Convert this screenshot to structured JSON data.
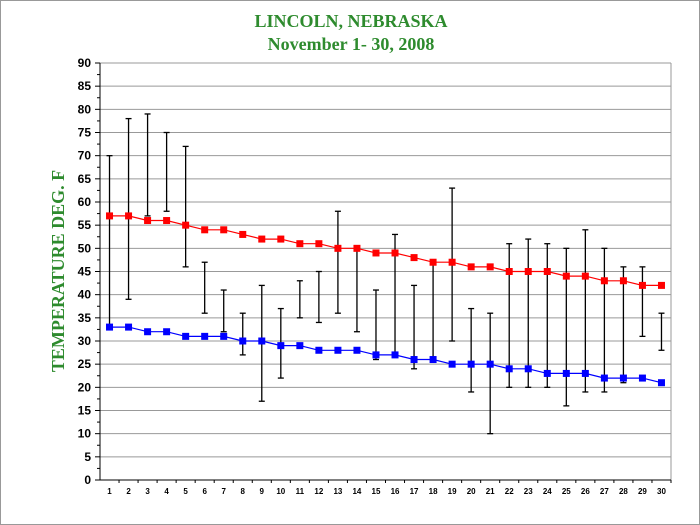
{
  "chart_data": {
    "type": "line",
    "title": "LINCOLN, NEBRASKA",
    "subtitle": "November 1- 30, 2008",
    "xlabel": "",
    "ylabel": "TEMPERATURE DEG. F",
    "ylim": [
      0,
      90
    ],
    "yticks": [
      0,
      5,
      10,
      15,
      20,
      25,
      30,
      35,
      40,
      45,
      50,
      55,
      60,
      65,
      70,
      75,
      80,
      85,
      90
    ],
    "grid": true,
    "categories": [
      "1",
      "2",
      "3",
      "4",
      "5",
      "6",
      "7",
      "8",
      "9",
      "10",
      "11",
      "12",
      "13",
      "14",
      "15",
      "16",
      "17",
      "18",
      "19",
      "20",
      "21",
      "22",
      "23",
      "24",
      "25",
      "26",
      "27",
      "28",
      "29",
      "30"
    ],
    "series": [
      {
        "color": "#ff0000",
        "values": [
          57,
          57,
          56,
          56,
          55,
          54,
          54,
          53,
          52,
          52,
          51,
          51,
          50,
          50,
          49,
          49,
          48,
          47,
          47,
          46,
          46,
          45,
          45,
          45,
          44,
          44,
          43,
          43,
          42,
          42
        ]
      },
      {
        "color": "#0000ff",
        "values": [
          33,
          33,
          32,
          32,
          31,
          31,
          31,
          30,
          30,
          29,
          29,
          28,
          28,
          28,
          27,
          27,
          26,
          26,
          25,
          25,
          25,
          24,
          24,
          23,
          23,
          23,
          22,
          22,
          22,
          21
        ]
      }
    ],
    "daily_range": {
      "color": "#000000",
      "high": [
        70,
        78,
        79,
        75,
        72,
        47,
        41,
        36,
        42,
        37,
        43,
        45,
        58,
        50,
        41,
        53,
        42,
        47,
        63,
        37,
        36,
        51,
        52,
        51,
        50,
        54,
        50,
        46,
        46,
        36
      ],
      "low": [
        33,
        39,
        57,
        58,
        46,
        36,
        32,
        27,
        17,
        22,
        35,
        34,
        36,
        32,
        26,
        27,
        24,
        26,
        30,
        19,
        10,
        20,
        20,
        20,
        16,
        19,
        19,
        21,
        31,
        28
      ]
    }
  }
}
